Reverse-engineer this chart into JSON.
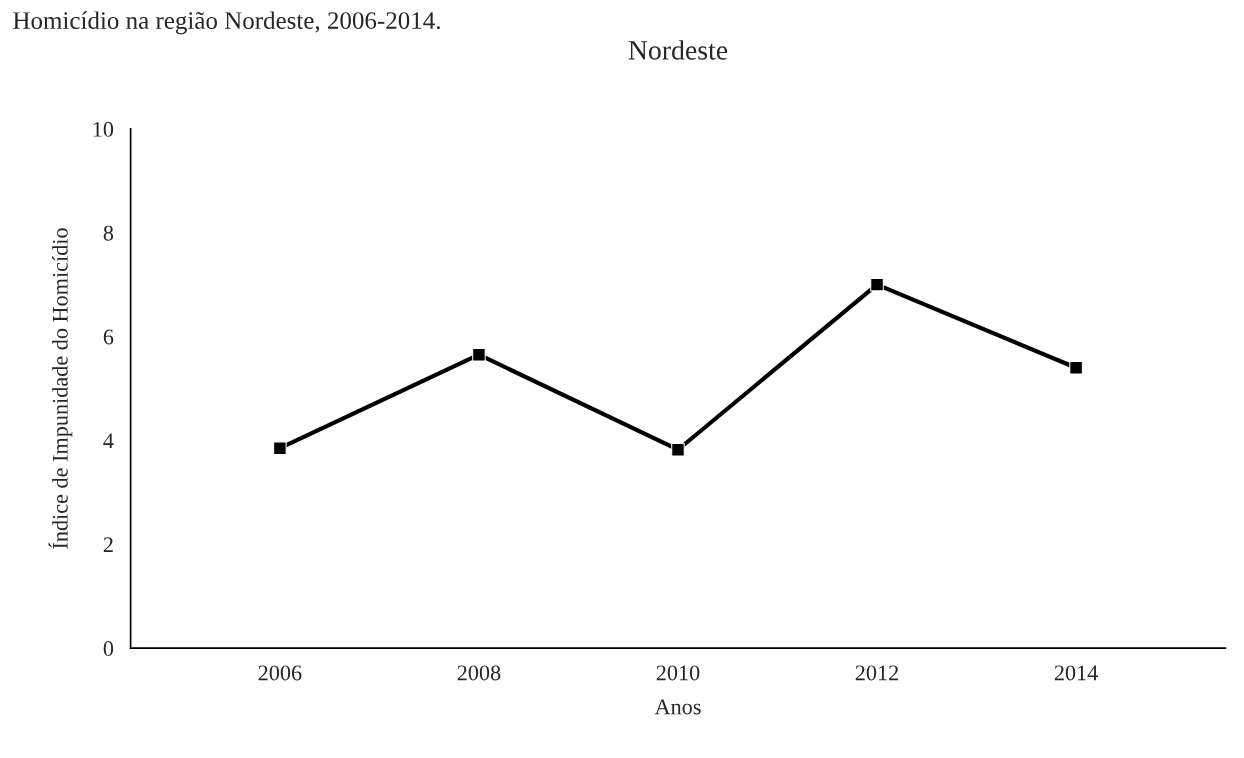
{
  "chart_data": {
    "type": "line",
    "title": "Nordeste",
    "xlabel": "Anos",
    "ylabel": "Índice de Impunidade do Homicídio",
    "annotations": [
      "Homicídio na região Nordeste, 2006-2014."
    ],
    "categories": [
      "2006",
      "2008",
      "2010",
      "2012",
      "2014"
    ],
    "series": [
      {
        "color": "#000000",
        "values": [
          3.85,
          5.65,
          3.82,
          7.0,
          5.4
        ]
      }
    ],
    "ylim": [
      0,
      10
    ],
    "yticks": [
      0,
      2,
      4,
      6,
      8,
      10
    ],
    "grid": false,
    "legend": false,
    "marker": "square",
    "line_style": "solid"
  }
}
